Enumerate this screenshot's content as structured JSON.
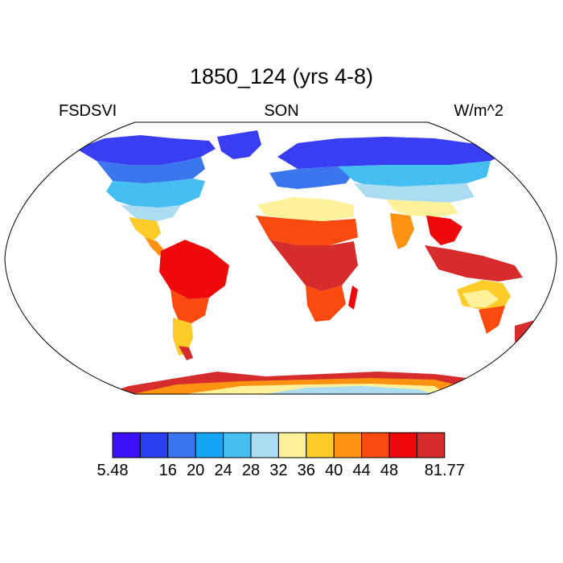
{
  "title": "1850_124 (yrs 4-8)",
  "left_label": "FSDSVI",
  "center_label": "SON",
  "right_label": "W/m^2",
  "colorbar": {
    "colors": [
      "#3b10f5",
      "#2a3ef2",
      "#3a76ee",
      "#16a4f4",
      "#45bff2",
      "#abdcf2",
      "#fdf29a",
      "#fdcc28",
      "#fd9310",
      "#fb4a0f",
      "#ee0a0a",
      "#d62c2c"
    ],
    "labels": [
      "5.48",
      "16",
      "20",
      "24",
      "28",
      "32",
      "36",
      "40",
      "44",
      "48",
      "81.77"
    ]
  },
  "chart_data": {
    "type": "map",
    "projection": "Robinson",
    "variable": "FSDSVI",
    "season": "SON",
    "units": "W/m^2",
    "value_range": [
      5.48,
      81.77
    ],
    "levels": [
      16,
      20,
      24,
      28,
      32,
      36,
      40,
      44,
      48
    ]
  }
}
